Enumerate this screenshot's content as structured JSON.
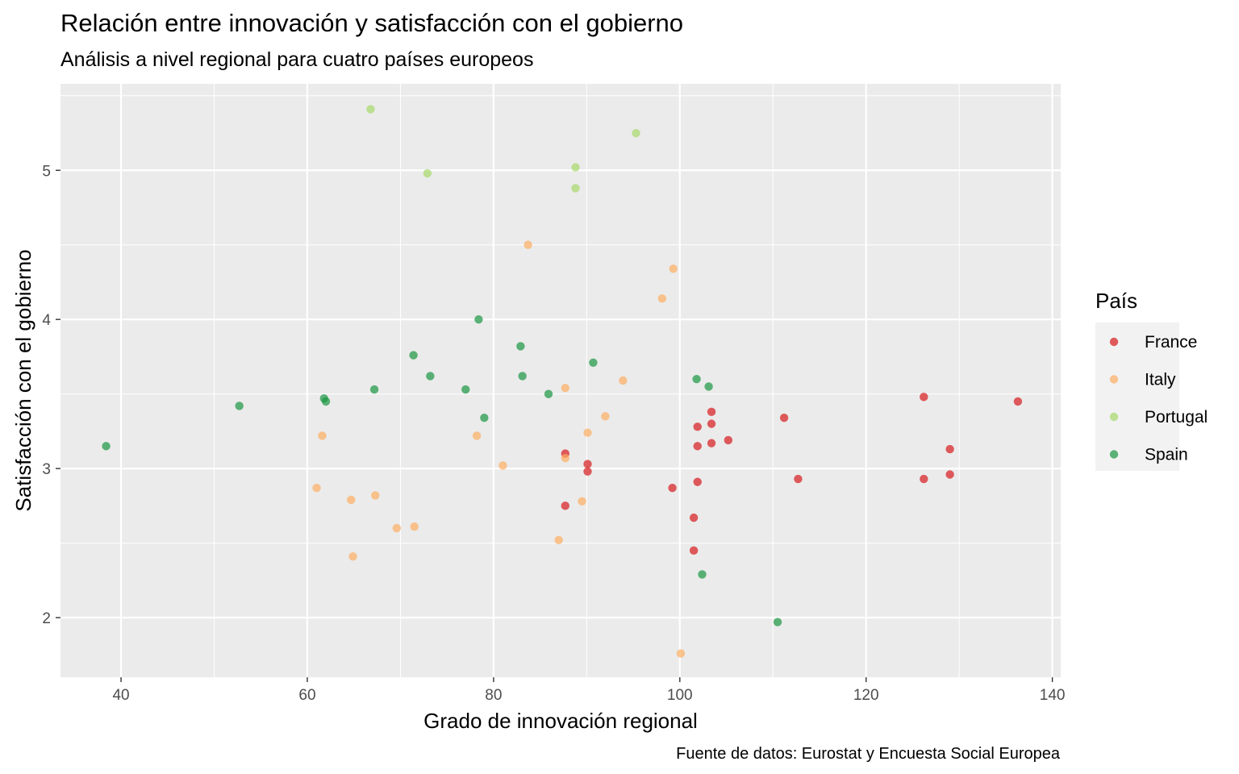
{
  "chart_data": {
    "type": "scatter",
    "title": "Relación entre innovación y satisfacción con el gobierno",
    "subtitle": "Análisis a nivel regional para cuatro países europeos",
    "xlabel": "Grado de innovación regional",
    "ylabel": "Satisfacción con el gobierno",
    "caption": "Fuente de datos: Eurostat y Encuesta Social Europea",
    "xlim": [
      33.5,
      140.9
    ],
    "ylim": [
      1.6,
      5.58
    ],
    "x_ticks": [
      40,
      60,
      80,
      100,
      120,
      140
    ],
    "y_ticks": [
      2,
      3,
      4,
      5
    ],
    "grid": true,
    "legend": {
      "title": "País",
      "position": "right"
    },
    "series": [
      {
        "name": "France",
        "color": "#D7191C",
        "points": [
          [
            87.7,
            3.1
          ],
          [
            90.1,
            3.03
          ],
          [
            90.1,
            2.98
          ],
          [
            87.7,
            2.75
          ],
          [
            99.2,
            2.87
          ],
          [
            101.9,
            3.28
          ],
          [
            101.9,
            3.15
          ],
          [
            101.9,
            2.91
          ],
          [
            101.5,
            2.67
          ],
          [
            101.5,
            2.45
          ],
          [
            103.4,
            3.38
          ],
          [
            103.4,
            3.3
          ],
          [
            103.4,
            3.17
          ],
          [
            105.2,
            3.19
          ],
          [
            111.2,
            3.34
          ],
          [
            112.7,
            2.93
          ],
          [
            126.2,
            3.48
          ],
          [
            126.2,
            2.93
          ],
          [
            129.0,
            3.13
          ],
          [
            129.0,
            2.96
          ],
          [
            136.3,
            3.45
          ]
        ]
      },
      {
        "name": "Italy",
        "color": "#FDAE61",
        "points": [
          [
            83.7,
            4.5
          ],
          [
            99.3,
            4.34
          ],
          [
            98.1,
            4.14
          ],
          [
            93.9,
            3.59
          ],
          [
            87.7,
            3.54
          ],
          [
            92.0,
            3.35
          ],
          [
            90.1,
            3.24
          ],
          [
            78.2,
            3.22
          ],
          [
            61.6,
            3.22
          ],
          [
            87.7,
            3.07
          ],
          [
            81.0,
            3.02
          ],
          [
            61.0,
            2.87
          ],
          [
            67.3,
            2.82
          ],
          [
            64.7,
            2.79
          ],
          [
            89.5,
            2.78
          ],
          [
            71.5,
            2.61
          ],
          [
            69.6,
            2.6
          ],
          [
            87.0,
            2.52
          ],
          [
            64.9,
            2.41
          ],
          [
            100.1,
            1.76
          ]
        ]
      },
      {
        "name": "Portugal",
        "color": "#A6D96A",
        "points": [
          [
            66.8,
            5.41
          ],
          [
            95.3,
            5.25
          ],
          [
            72.9,
            4.98
          ],
          [
            88.8,
            5.02
          ],
          [
            88.8,
            4.88
          ]
        ]
      },
      {
        "name": "Spain",
        "color": "#1A9641",
        "points": [
          [
            78.4,
            4.0
          ],
          [
            82.9,
            3.82
          ],
          [
            71.4,
            3.76
          ],
          [
            90.7,
            3.71
          ],
          [
            73.2,
            3.62
          ],
          [
            83.1,
            3.62
          ],
          [
            101.8,
            3.6
          ],
          [
            103.1,
            3.55
          ],
          [
            67.2,
            3.53
          ],
          [
            77.0,
            3.53
          ],
          [
            85.9,
            3.5
          ],
          [
            61.8,
            3.47
          ],
          [
            62.0,
            3.45
          ],
          [
            52.7,
            3.42
          ],
          [
            79.0,
            3.34
          ],
          [
            38.4,
            3.15
          ],
          [
            102.4,
            2.29
          ],
          [
            110.5,
            1.97
          ]
        ]
      }
    ]
  }
}
